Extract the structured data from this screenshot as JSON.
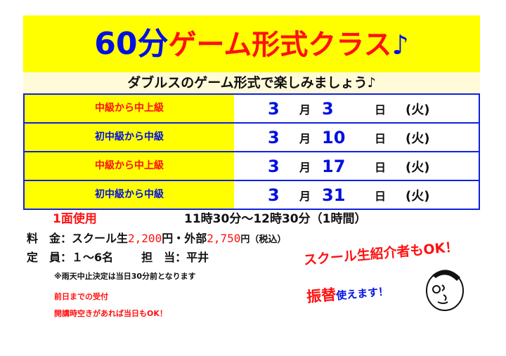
{
  "title": {
    "part1": "60分",
    "part2": "ゲーム形式クラス",
    "note": "♪"
  },
  "subtitle": "ダブルスのゲーム形式で楽しみましょう♪",
  "colors": {
    "yellow": "#ffff00",
    "blue": "#0010e0",
    "red": "#ff1010"
  },
  "schedule": [
    {
      "level": "中級から中上級",
      "level_color": "#ff1010",
      "month": "3",
      "month_unit": "月",
      "day": "3",
      "day_unit": "日",
      "weekday": "(火)"
    },
    {
      "level": "初中級から中級",
      "level_color": "#0010e0",
      "month": "3",
      "month_unit": "月",
      "day": "10",
      "day_unit": "日",
      "weekday": "(火)"
    },
    {
      "level": "中級から中上級",
      "level_color": "#ff1010",
      "month": "3",
      "month_unit": "月",
      "day": "17",
      "day_unit": "日",
      "weekday": "(火)"
    },
    {
      "level": "初中級から中級",
      "level_color": "#0010e0",
      "month": "3",
      "month_unit": "月",
      "day": "31",
      "day_unit": "日",
      "weekday": "(火)"
    }
  ],
  "courts": "1面使用",
  "time": "11時30分〜12時30分（1時間）",
  "fee": {
    "label": "料　金：",
    "school_label": "スクール生",
    "school_price": "2,200",
    "yen1": "円・外部",
    "outside_price": "2,750",
    "yen2": "円（税込）"
  },
  "capacity": {
    "label": "定　員：",
    "value": "１〜6名",
    "staff_label": "担　当：",
    "staff": "平井"
  },
  "rain_note": "※雨天中止決定は当日30分前となります",
  "reception": [
    "前日までの受付",
    "開講時空きがあれば当日もOK！"
  ],
  "promo": {
    "line1": "スクール生紹介者もOK！",
    "line2a": "振替",
    "line2b": "使えます！"
  }
}
